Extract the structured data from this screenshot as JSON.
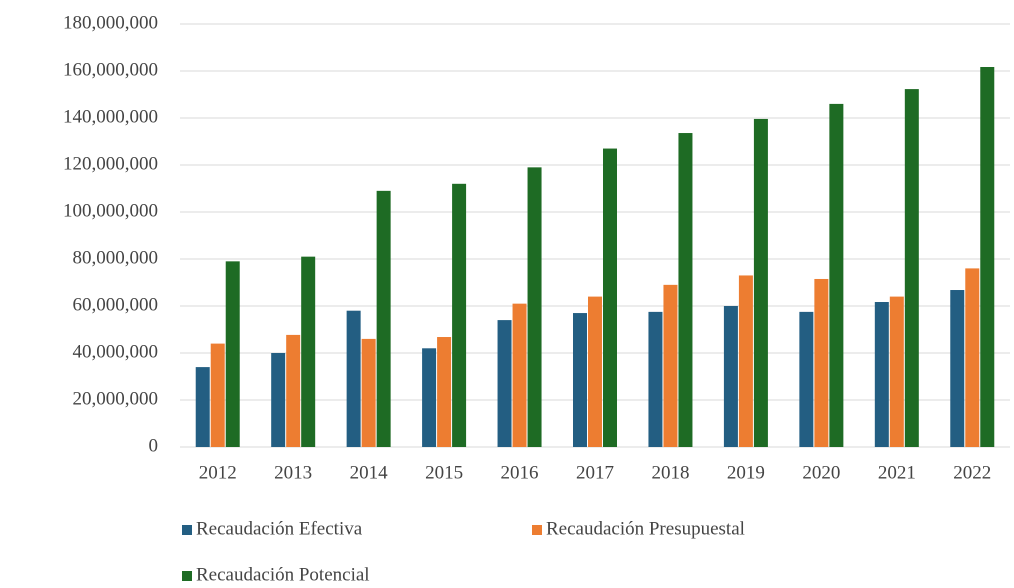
{
  "chart_data": {
    "type": "bar",
    "categories": [
      "2012",
      "2013",
      "2014",
      "2015",
      "2016",
      "2017",
      "2018",
      "2019",
      "2020",
      "2021",
      "2022"
    ],
    "series": [
      {
        "name": "Recaudación Efectiva",
        "color": "#235e82",
        "values": [
          34000000,
          40000000,
          58000000,
          42000000,
          54000000,
          57000000,
          57500000,
          60000000,
          57500000,
          61700000,
          66800000
        ]
      },
      {
        "name": "Recaudación Presupuestal",
        "color": "#ed7d31",
        "values": [
          44000000,
          47700000,
          46000000,
          46800000,
          61000000,
          64000000,
          69000000,
          73000000,
          71500000,
          64000000,
          76000000
        ]
      },
      {
        "name": "Recaudación Potencial",
        "color": "#1e6b24",
        "values": [
          79000000,
          81000000,
          109000000,
          112000000,
          119000000,
          127000000,
          133600000,
          139600000,
          146000000,
          152300000,
          161700000
        ]
      }
    ],
    "ylim": [
      0,
      180000000
    ],
    "yticks": [
      0,
      {
        "value": 20000000,
        "label": "20,000,000"
      },
      {
        "value": 40000000,
        "label": "40,000,000"
      },
      {
        "value": 60000000,
        "label": "60,000,000"
      },
      {
        "value": 80000000,
        "label": "80,000,000"
      },
      {
        "value": 100000000,
        "label": "100,000,000"
      },
      {
        "value": 120000000,
        "label": "120,000,000"
      },
      {
        "value": 140000000,
        "label": "140,000,000"
      },
      {
        "value": 160000000,
        "label": "160,000,000"
      },
      {
        "value": 180000000,
        "label": "180,000,000"
      }
    ],
    "grid": true
  }
}
